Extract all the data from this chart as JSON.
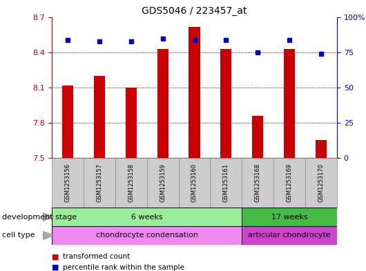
{
  "title": "GDS5046 / 223457_at",
  "samples": [
    "GSM1253156",
    "GSM1253157",
    "GSM1253158",
    "GSM1253159",
    "GSM1253160",
    "GSM1253161",
    "GSM1253168",
    "GSM1253169",
    "GSM1253170"
  ],
  "bar_values": [
    8.12,
    8.2,
    8.1,
    8.43,
    8.62,
    8.43,
    7.86,
    8.43,
    7.65
  ],
  "percentile_values": [
    84,
    83,
    83,
    85,
    84,
    84,
    75,
    84,
    74
  ],
  "ymin": 7.5,
  "ymax": 8.7,
  "y_ticks": [
    7.5,
    7.8,
    8.1,
    8.4,
    8.7
  ],
  "right_y_ticks": [
    0,
    25,
    50,
    75,
    100
  ],
  "bar_color": "#cc0000",
  "dot_color": "#0000cc",
  "bar_width": 0.35,
  "development_stage_groups": [
    {
      "label": "6 weeks",
      "start": 0,
      "end": 6,
      "color": "#99ee99"
    },
    {
      "label": "17 weeks",
      "start": 6,
      "end": 9,
      "color": "#44bb44"
    }
  ],
  "cell_type_groups": [
    {
      "label": "chondrocyte condensation",
      "start": 0,
      "end": 6,
      "color": "#ee88ee"
    },
    {
      "label": "articular chondrocyte",
      "start": 6,
      "end": 9,
      "color": "#cc44cc"
    }
  ],
  "legend_items": [
    {
      "label": "transformed count",
      "color": "#cc0000"
    },
    {
      "label": "percentile rank within the sample",
      "color": "#0000cc"
    }
  ],
  "left_label_dev": "development stage",
  "left_label_cell": "cell type",
  "tick_color_left": "#cc0000",
  "tick_color_right": "#0000cc",
  "gray_box_color": "#cccccc",
  "box_edge_color": "#888888"
}
